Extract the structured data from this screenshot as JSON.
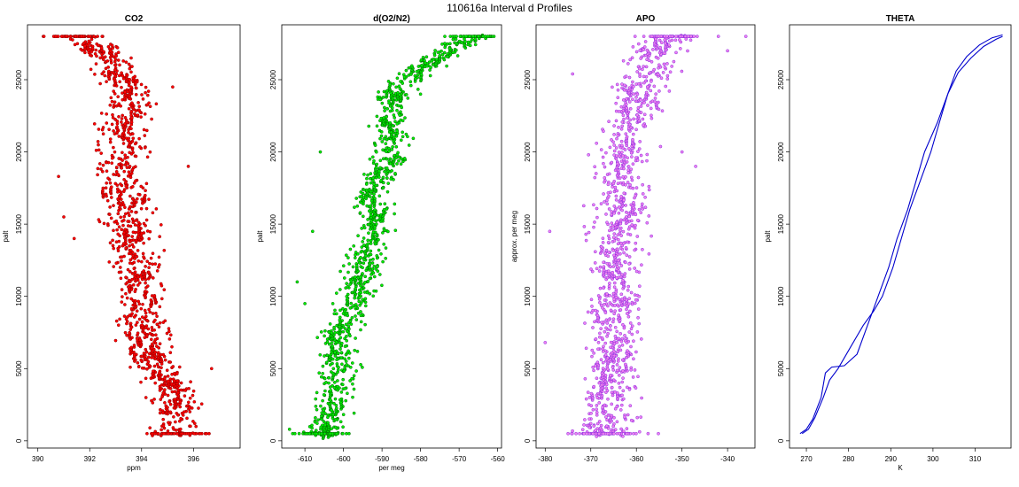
{
  "figure_title": "110616a   Interval d Profiles",
  "chart_data": [
    {
      "type": "scatter",
      "title": "CO2",
      "xlabel": "ppm",
      "ylabel": "palt",
      "xlim": [
        389.6,
        397.8
      ],
      "ylim": [
        -500,
        28800
      ],
      "xticks": [
        390,
        392,
        394,
        396
      ],
      "yticks": [
        0,
        5000,
        10000,
        15000,
        20000,
        25000
      ],
      "color": "#ff0000",
      "outline": "#8b0000",
      "profile": [
        [
          0,
          395.5
        ],
        [
          300,
          395.2
        ],
        [
          2000,
          395.4
        ],
        [
          4000,
          395.0
        ],
        [
          6000,
          394.2
        ],
        [
          8000,
          394.0
        ],
        [
          10000,
          393.9
        ],
        [
          12000,
          393.8
        ],
        [
          14000,
          393.6
        ],
        [
          16000,
          393.5
        ],
        [
          18000,
          393.2
        ],
        [
          20000,
          393.3
        ],
        [
          22000,
          393.3
        ],
        [
          24000,
          393.6
        ],
        [
          26000,
          393.0
        ],
        [
          27500,
          392.0
        ],
        [
          28000,
          391.5
        ]
      ],
      "spread": 0.8,
      "outliers": [
        [
          18300,
          390.8
        ],
        [
          15500,
          391.0
        ],
        [
          14000,
          391.4
        ],
        [
          24500,
          395.2
        ],
        [
          19000,
          395.8
        ],
        [
          5000,
          396.7
        ]
      ]
    },
    {
      "type": "scatter",
      "title": "d(O2/N2)",
      "xlabel": "per meg",
      "ylabel": "palt",
      "xlim": [
        -616,
        -559
      ],
      "ylim": [
        -500,
        28800
      ],
      "xticks": [
        -610,
        -600,
        -590,
        -580,
        -570,
        -560
      ],
      "yticks": [
        0,
        5000,
        10000,
        15000,
        20000,
        25000
      ],
      "color": "#00ee00",
      "outline": "#006400",
      "profile": [
        [
          0,
          -606
        ],
        [
          1500,
          -604
        ],
        [
          3000,
          -602
        ],
        [
          5000,
          -601
        ],
        [
          7000,
          -602
        ],
        [
          9000,
          -598
        ],
        [
          11000,
          -595
        ],
        [
          13000,
          -594
        ],
        [
          15000,
          -591
        ],
        [
          17000,
          -593
        ],
        [
          19000,
          -589
        ],
        [
          21000,
          -588
        ],
        [
          23000,
          -588
        ],
        [
          24500,
          -586
        ],
        [
          26000,
          -578
        ],
        [
          27200,
          -572
        ],
        [
          28000,
          -566
        ]
      ],
      "spread": 4.0,
      "outliers": [
        [
          800,
          -614
        ],
        [
          11000,
          -612
        ],
        [
          9500,
          -610
        ],
        [
          20000,
          -606
        ],
        [
          14500,
          -608
        ],
        [
          24000,
          -580
        ]
      ]
    },
    {
      "type": "scatter",
      "title": "APO",
      "xlabel": "",
      "ylabel": "approx. per meg",
      "xlim": [
        -382,
        -334
      ],
      "ylim": [
        -500,
        28800
      ],
      "xticks": [
        -380,
        -370,
        -360,
        -350,
        -340
      ],
      "yticks": [
        0,
        5000,
        10000,
        15000,
        20000,
        25000
      ],
      "color": "#ee82ee",
      "outline": "#8a2be2",
      "profile": [
        [
          0,
          -367
        ],
        [
          3000,
          -366
        ],
        [
          6000,
          -365
        ],
        [
          9000,
          -365
        ],
        [
          12000,
          -364
        ],
        [
          15000,
          -364
        ],
        [
          18000,
          -363
        ],
        [
          21000,
          -362
        ],
        [
          24000,
          -360
        ],
        [
          26000,
          -357
        ],
        [
          27500,
          -355
        ],
        [
          28000,
          -352
        ]
      ],
      "spread": 5.0,
      "outliers": [
        [
          6800,
          -380
        ],
        [
          14500,
          -379
        ],
        [
          25400,
          -374
        ],
        [
          20000,
          -350
        ],
        [
          19000,
          -347
        ],
        [
          27000,
          -340
        ],
        [
          28000,
          -336
        ]
      ]
    },
    {
      "type": "line",
      "title": "THETA",
      "xlabel": "K",
      "ylabel": "palt",
      "xlim": [
        266,
        318.5
      ],
      "ylim": [
        -500,
        28800
      ],
      "xticks": [
        270,
        280,
        290,
        300,
        310
      ],
      "yticks": [
        0,
        5000,
        10000,
        15000,
        20000,
        25000
      ],
      "color": "#0000cd",
      "series": [
        {
          "points": [
            [
              500,
              268.5
            ],
            [
              800,
              270
            ],
            [
              1500,
              271.5
            ],
            [
              3000,
              273.5
            ],
            [
              4700,
              274.5
            ],
            [
              5100,
              276
            ],
            [
              5200,
              279
            ],
            [
              6000,
              282
            ],
            [
              8000,
              284.5
            ],
            [
              10000,
              287
            ],
            [
              12000,
              289.5
            ],
            [
              14000,
              291.5
            ],
            [
              16000,
              294
            ],
            [
              18000,
              296
            ],
            [
              20000,
              298
            ],
            [
              22000,
              301
            ],
            [
              24000,
              303.5
            ],
            [
              25500,
              306
            ],
            [
              26500,
              309
            ],
            [
              27300,
              312
            ],
            [
              27800,
              315
            ],
            [
              28000,
              316.5
            ]
          ]
        },
        {
          "points": [
            [
              500,
              269
            ],
            [
              800,
              270.5
            ],
            [
              1600,
              272
            ],
            [
              3000,
              274
            ],
            [
              4200,
              275.5
            ],
            [
              5000,
              277.5
            ],
            [
              6500,
              280.5
            ],
            [
              8000,
              283.5
            ],
            [
              9000,
              286
            ],
            [
              10000,
              288
            ],
            [
              12000,
              290.5
            ],
            [
              14000,
              292.5
            ],
            [
              16000,
              294.5
            ],
            [
              18000,
              297
            ],
            [
              20000,
              299.5
            ],
            [
              22000,
              301.5
            ],
            [
              24000,
              303.5
            ],
            [
              25600,
              305.5
            ],
            [
              26600,
              308
            ],
            [
              27400,
              311
            ],
            [
              27900,
              314
            ],
            [
              28100,
              316.5
            ]
          ]
        }
      ]
    }
  ]
}
